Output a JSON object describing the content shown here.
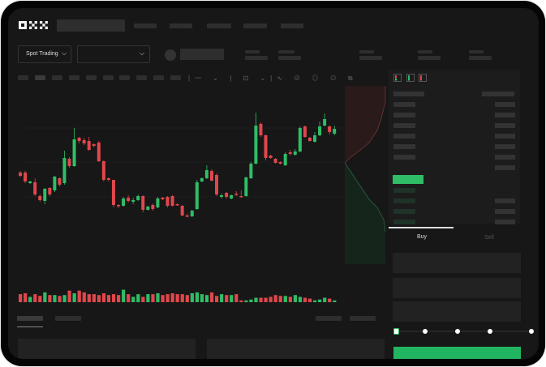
{
  "header": {
    "logo": "OKX"
  },
  "market": {
    "mode_label": "Spot Trading",
    "pair_placeholder": ""
  },
  "trade_panel": {
    "tabs": [
      {
        "label": "Buy",
        "active": true
      },
      {
        "label": "Sell",
        "active": false
      }
    ],
    "leverage_steps": 5,
    "selected_step": 0
  },
  "colors": {
    "up": "#2fbd67",
    "down": "#e0474c",
    "accent": "#22b561",
    "background": "#171717"
  },
  "icons": [
    "okx-logo",
    "chevron-down-icon",
    "orderbook-both-icon",
    "orderbook-bids-icon",
    "orderbook-asks-icon"
  ],
  "chart_data": {
    "type": "candlestick",
    "candles": [
      [
        97,
        93,
        99,
        91
      ],
      [
        97,
        86,
        99,
        84
      ],
      [
        84,
        86,
        87,
        83
      ],
      [
        85,
        70,
        90,
        68
      ],
      [
        68,
        63,
        70,
        61
      ],
      [
        62,
        77,
        78,
        58
      ],
      [
        78,
        70,
        79,
        68
      ],
      [
        75,
        92,
        93,
        73
      ],
      [
        90,
        82,
        91,
        80
      ],
      [
        84,
        115,
        124,
        82
      ],
      [
        114,
        105,
        116,
        103
      ],
      [
        105,
        138,
        152,
        104
      ],
      [
        140,
        136,
        141,
        133
      ],
      [
        137,
        133,
        140,
        131
      ],
      [
        136,
        125,
        141,
        124
      ],
      [
        132,
        130,
        133,
        128
      ],
      [
        134,
        111,
        136,
        110
      ],
      [
        111,
        88,
        112,
        86
      ],
      [
        90,
        88,
        91,
        86
      ],
      [
        88,
        57,
        88,
        54
      ],
      [
        57,
        56,
        58,
        53
      ],
      [
        56,
        65,
        67,
        55
      ],
      [
        66,
        62,
        69,
        60
      ],
      [
        61,
        63,
        66,
        58
      ],
      [
        63,
        68,
        70,
        62
      ],
      [
        68,
        51,
        69,
        48
      ],
      [
        51,
        55,
        56,
        50
      ],
      [
        57,
        52,
        59,
        50
      ],
      [
        54,
        65,
        67,
        53
      ],
      [
        66,
        64,
        67,
        63
      ],
      [
        67,
        56,
        68,
        54
      ],
      [
        68,
        56,
        69,
        55
      ],
      [
        58,
        57,
        59,
        56
      ],
      [
        56,
        44,
        57,
        43
      ],
      [
        44,
        43,
        46,
        42
      ],
      [
        43,
        50,
        51,
        42
      ],
      [
        52,
        85,
        88,
        51
      ],
      [
        86,
        90,
        91,
        85
      ],
      [
        90,
        100,
        106,
        89
      ],
      [
        99,
        87,
        101,
        86
      ],
      [
        94,
        70,
        96,
        68
      ],
      [
        67,
        69,
        71,
        65
      ],
      [
        72,
        67,
        73,
        65
      ],
      [
        65,
        69,
        70,
        64
      ],
      [
        71,
        70,
        74,
        68
      ],
      [
        68,
        67,
        75,
        66
      ],
      [
        68,
        91,
        92,
        67
      ],
      [
        90,
        108,
        110,
        89
      ],
      [
        108,
        155,
        171,
        107
      ],
      [
        157,
        143,
        159,
        141
      ],
      [
        143,
        115,
        144,
        112
      ],
      [
        118,
        115,
        119,
        114
      ],
      [
        114,
        109,
        115,
        108
      ],
      [
        110,
        108,
        111,
        107
      ],
      [
        106,
        120,
        122,
        105
      ],
      [
        122,
        120,
        125,
        118
      ],
      [
        119,
        123,
        126,
        118
      ],
      [
        123,
        152,
        154,
        122
      ],
      [
        154,
        141,
        155,
        140
      ],
      [
        140,
        136,
        141,
        135
      ],
      [
        135,
        143,
        147,
        134
      ],
      [
        143,
        154,
        160,
        142
      ],
      [
        155,
        163,
        170,
        154
      ],
      [
        154,
        147,
        155,
        144
      ],
      [
        145,
        151,
        155,
        143
      ]
    ],
    "volume": [
      9,
      10,
      6,
      9,
      7,
      11,
      8,
      8,
      7,
      8,
      13,
      10,
      13,
      11,
      9,
      9,
      8,
      10,
      8,
      9,
      8,
      14,
      9,
      6,
      9,
      6,
      9,
      9,
      10,
      8,
      9,
      10,
      9,
      9,
      8,
      10,
      11,
      9,
      8,
      11,
      7,
      9,
      8,
      8,
      9,
      2,
      2,
      3,
      5,
      5,
      5,
      6,
      8,
      7,
      7,
      6,
      8,
      6,
      5,
      4,
      2,
      3,
      5,
      4,
      2
    ],
    "grid": true
  }
}
